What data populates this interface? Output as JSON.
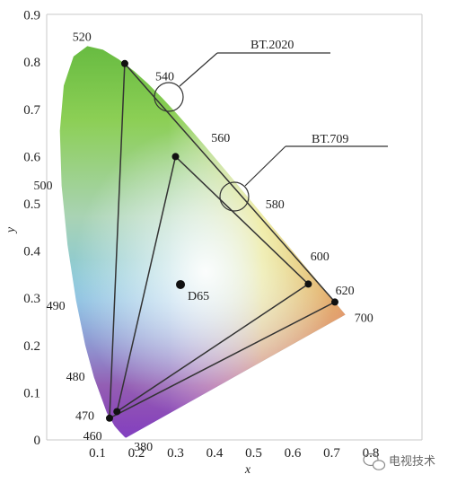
{
  "chart_data": {
    "type": "diagram",
    "title": "",
    "xlabel": "x",
    "ylabel": "y",
    "xlim": [
      0,
      0.8
    ],
    "ylim": [
      0,
      0.9
    ],
    "x_ticks": [
      "0.1",
      "0.2",
      "0.3",
      "0.4",
      "0.5",
      "0.6",
      "0.7",
      "0.8"
    ],
    "y_ticks": [
      "0",
      "0.1",
      "0.2",
      "0.3",
      "0.4",
      "0.5",
      "0.6",
      "0.7",
      "0.8",
      "0.9"
    ],
    "wavelength_labels": [
      {
        "text": "380",
        "x": 0.175,
        "y": 0.0
      },
      {
        "text": "460",
        "x": 0.144,
        "y": 0.03
      },
      {
        "text": "470",
        "x": 0.124,
        "y": 0.058
      },
      {
        "text": "480",
        "x": 0.091,
        "y": 0.133
      },
      {
        "text": "490",
        "x": 0.045,
        "y": 0.295
      },
      {
        "text": "500",
        "x": 0.008,
        "y": 0.538
      },
      {
        "text": "520",
        "x": 0.074,
        "y": 0.834
      },
      {
        "text": "540",
        "x": 0.23,
        "y": 0.754
      },
      {
        "text": "560",
        "x": 0.373,
        "y": 0.624
      },
      {
        "text": "580",
        "x": 0.512,
        "y": 0.487
      },
      {
        "text": "600",
        "x": 0.627,
        "y": 0.373
      },
      {
        "text": "620",
        "x": 0.691,
        "y": 0.308
      },
      {
        "text": "700",
        "x": 0.735,
        "y": 0.265
      }
    ],
    "gamuts": [
      {
        "name": "BT.2020",
        "points": [
          [
            0.708,
            0.292
          ],
          [
            0.17,
            0.797
          ],
          [
            0.131,
            0.046
          ]
        ]
      },
      {
        "name": "BT.709",
        "points": [
          [
            0.64,
            0.33
          ],
          [
            0.3,
            0.6
          ],
          [
            0.15,
            0.06
          ]
        ]
      }
    ],
    "white_point": {
      "name": "D65",
      "x": 0.3127,
      "y": 0.329
    },
    "callouts": [
      "BT.2020",
      "BT.709"
    ]
  },
  "watermark": "电视技术"
}
